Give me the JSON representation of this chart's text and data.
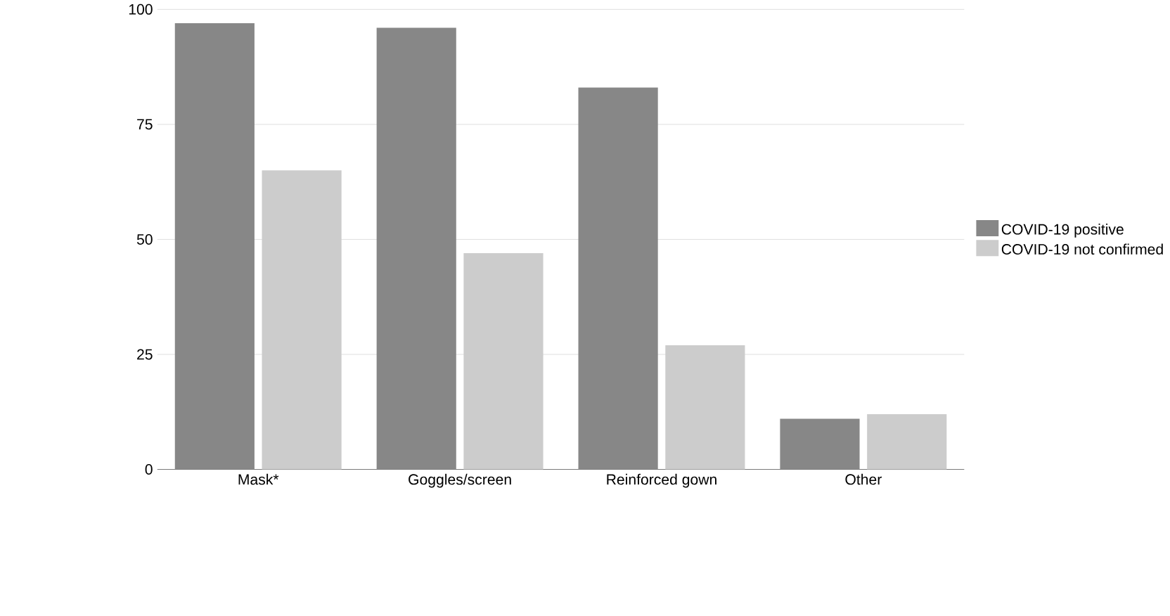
{
  "chart_data": {
    "type": "bar",
    "categories": [
      "Mask*",
      "Goggles/screen",
      "Reinforced gown",
      "Other"
    ],
    "series": [
      {
        "name": "COVID-19 positive",
        "color": "#878787",
        "values": [
          97,
          96,
          83,
          11
        ]
      },
      {
        "name": "COVID-19 not confirmed",
        "color": "#cccccc",
        "values": [
          65,
          47,
          27,
          12
        ]
      }
    ],
    "ylim": [
      0,
      100
    ],
    "yticks": [
      0,
      25,
      50,
      75,
      100
    ],
    "grid": "y",
    "legend": "right"
  }
}
